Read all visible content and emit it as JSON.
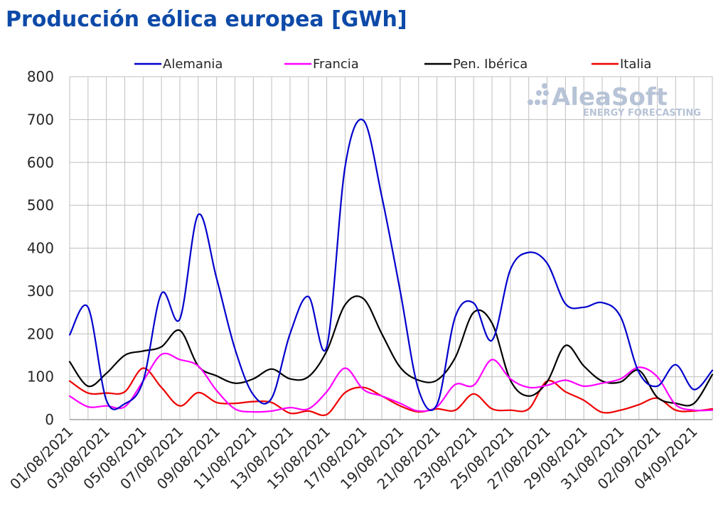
{
  "title": "Producción eólica europea [GWh]",
  "watermark": {
    "main": "AleaSoft",
    "sub": "ENERGY FORECASTING"
  },
  "colors": {
    "title": "#0d4aa8",
    "grid": "#bfbfbf",
    "axis": "#8c8c8c",
    "watermark": "#b7c3d6"
  },
  "chart_data": {
    "type": "line",
    "title": "Producción eólica europea [GWh]",
    "xlabel": "",
    "ylabel": "",
    "ylim": [
      0,
      800
    ],
    "yticks": [
      0,
      100,
      200,
      300,
      400,
      500,
      600,
      700,
      800
    ],
    "grid": true,
    "legend_position": "top",
    "x": [
      "01/08/2021",
      "02/08/2021",
      "03/08/2021",
      "04/08/2021",
      "05/08/2021",
      "06/08/2021",
      "07/08/2021",
      "08/08/2021",
      "09/08/2021",
      "10/08/2021",
      "11/08/2021",
      "12/08/2021",
      "13/08/2021",
      "14/08/2021",
      "15/08/2021",
      "16/08/2021",
      "17/08/2021",
      "18/08/2021",
      "19/08/2021",
      "20/08/2021",
      "21/08/2021",
      "22/08/2021",
      "23/08/2021",
      "24/08/2021",
      "25/08/2021",
      "26/08/2021",
      "27/08/2021",
      "28/08/2021",
      "29/08/2021",
      "30/08/2021",
      "31/08/2021",
      "01/09/2021",
      "02/09/2021",
      "03/09/2021",
      "04/09/2021",
      "05/09/2021"
    ],
    "xtick_labels": [
      "01/08/2021",
      "03/08/2021",
      "05/08/2021",
      "07/08/2021",
      "09/08/2021",
      "11/08/2021",
      "13/08/2021",
      "15/08/2021",
      "17/08/2021",
      "19/08/2021",
      "21/08/2021",
      "23/08/2021",
      "25/08/2021",
      "27/08/2021",
      "29/08/2021",
      "31/08/2021",
      "02/09/2021",
      "04/09/2021"
    ],
    "series": [
      {
        "name": "Alemania",
        "color": "#0000cc",
        "values": [
          198,
          262,
          45,
          37,
          90,
          294,
          235,
          478,
          330,
          165,
          58,
          50,
          200,
          287,
          170,
          590,
          698,
          520,
          300,
          70,
          35,
          240,
          272,
          185,
          350,
          390,
          365,
          270,
          262,
          273,
          240,
          110,
          78,
          128,
          70,
          115
        ]
      },
      {
        "name": "Francia",
        "color": "#ff00ff",
        "values": [
          55,
          30,
          32,
          30,
          90,
          152,
          140,
          125,
          68,
          25,
          18,
          20,
          28,
          25,
          65,
          120,
          70,
          55,
          38,
          20,
          30,
          82,
          80,
          140,
          95,
          75,
          80,
          92,
          78,
          85,
          95,
          122,
          100,
          35,
          22,
          22
        ]
      },
      {
        "name": "Pen. Ibérica",
        "color": "#000000",
        "values": [
          135,
          78,
          108,
          150,
          160,
          170,
          208,
          125,
          102,
          85,
          95,
          118,
          95,
          100,
          160,
          268,
          282,
          200,
          122,
          92,
          92,
          145,
          250,
          225,
          92,
          55,
          88,
          173,
          125,
          90,
          88,
          115,
          52,
          38,
          38,
          105
        ]
      },
      {
        "name": "Italia",
        "color": "#ee0000",
        "values": [
          90,
          62,
          62,
          65,
          120,
          75,
          32,
          63,
          40,
          38,
          42,
          40,
          15,
          20,
          12,
          63,
          75,
          55,
          32,
          18,
          25,
          22,
          60,
          25,
          22,
          25,
          90,
          65,
          45,
          17,
          22,
          35,
          50,
          22,
          20,
          25
        ]
      }
    ]
  }
}
